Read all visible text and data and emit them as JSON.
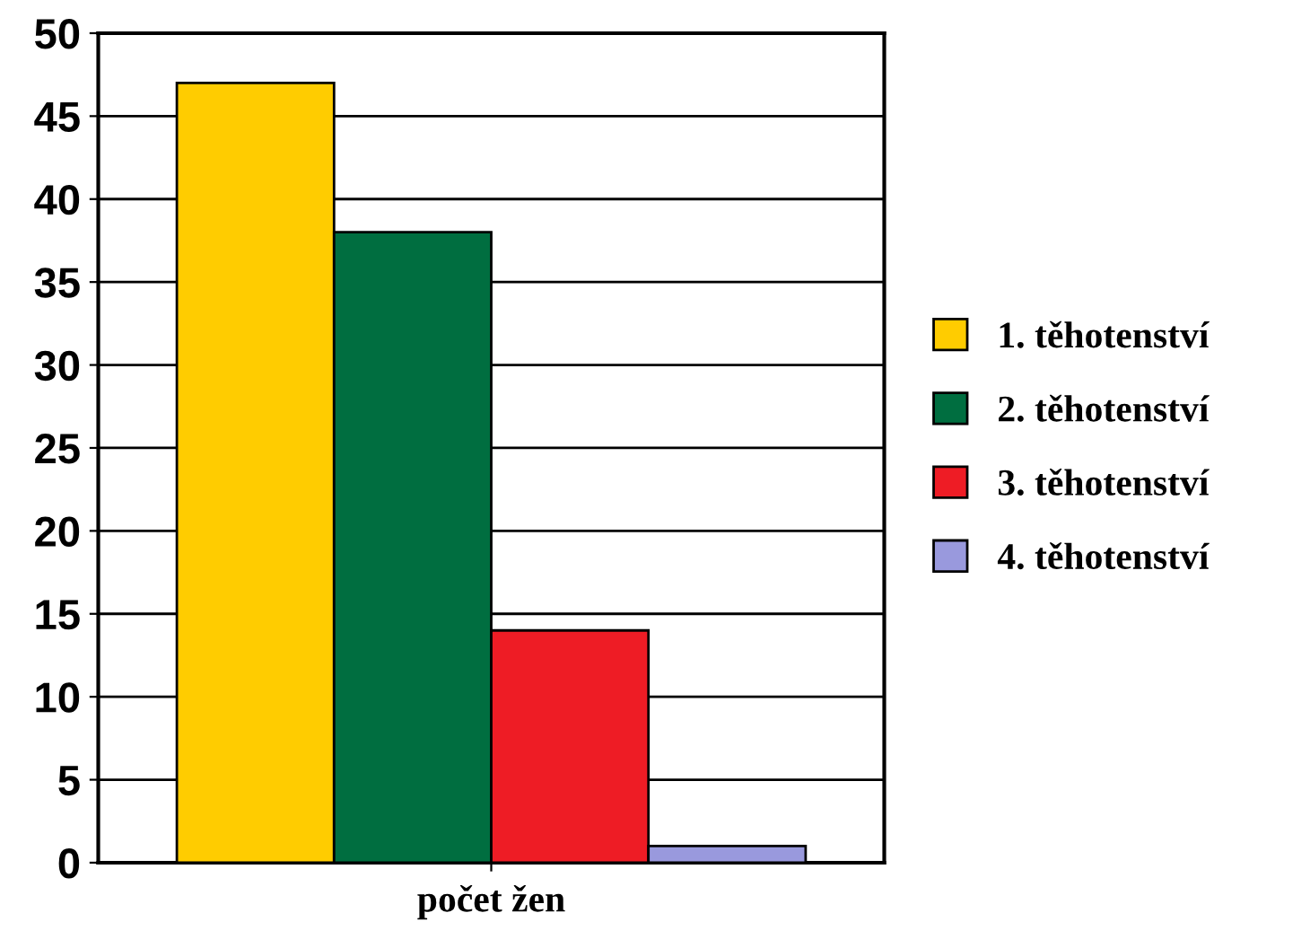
{
  "chart_data": {
    "type": "bar",
    "categories": [
      null
    ],
    "xlabel": "počet žen",
    "series": [
      {
        "name": "1. těhotenství",
        "color": "#ffcc00",
        "values": [
          47
        ]
      },
      {
        "name": "2. těhotenství",
        "color": "#006e40",
        "values": [
          38
        ]
      },
      {
        "name": "3. těhotenství",
        "color": "#ee1c25",
        "values": [
          14
        ]
      },
      {
        "name": "4. těhotenství",
        "color": "#9999dd",
        "values": [
          1
        ]
      }
    ],
    "ylim": [
      0,
      50
    ],
    "yticks": [
      0,
      5,
      10,
      15,
      20,
      25,
      30,
      35,
      40,
      45,
      50
    ],
    "grid": "y",
    "legend": "right"
  }
}
